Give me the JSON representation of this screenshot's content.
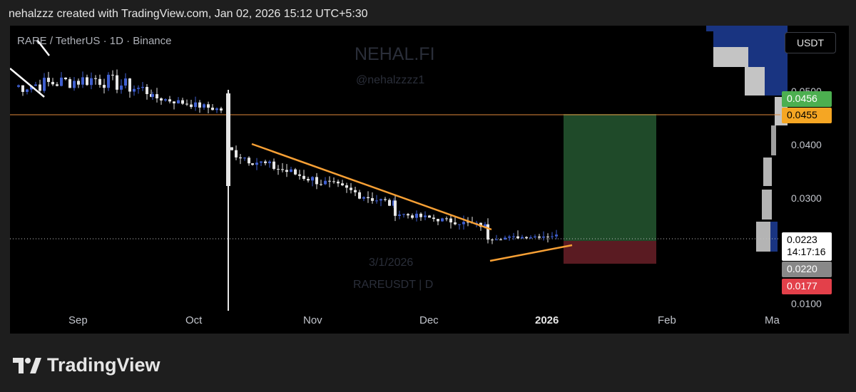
{
  "header": {
    "text": "nehalzzz created with TradingView.com, Jan 02, 2026 15:12 UTC+5:30"
  },
  "chart": {
    "symbol_title": "RARE / TetherUS · 1D · Binance",
    "watermark": {
      "brand": "NEHAL.FI",
      "handle": "@nehalzzzz1",
      "date": "3/1/2026",
      "symbol": "RAREUSDT | D"
    },
    "x_axis": {
      "labels": [
        "Sep",
        "Oct",
        "Nov",
        "Dec",
        "2026",
        "Feb",
        "Ma"
      ]
    },
    "y_axis": {
      "currency": "USDT",
      "labels": [
        "0.0500",
        "0.0400",
        "0.0300",
        "0.0100"
      ]
    },
    "price_tags": {
      "target": "0.0456",
      "resistance": "0.0455",
      "last": "0.0223",
      "countdown": "14:17:16",
      "entry": "0.0220",
      "stop": "0.0177"
    },
    "colors": {
      "bull": "#3f5fd0",
      "bear": "#e6e6e6",
      "trendline": "#f7a035",
      "profit_zone": "#1f4a29",
      "loss_zone": "#5a1b22",
      "volume_profile_up": "#1c3a8f"
    }
  },
  "chart_data": {
    "type": "candlestick",
    "title": "RARE / TetherUS · 1D · Binance",
    "x": [
      "Sep",
      "Oct",
      "Nov",
      "Dec",
      "2026",
      "Feb",
      "Ma"
    ],
    "y_labels": [
      "0.0500",
      "0.0400",
      "0.0300",
      "0.0100"
    ],
    "resistance_level": 0.0455,
    "long_position": {
      "entry": 0.022,
      "target": 0.0456,
      "stop": 0.0177
    },
    "last_price": 0.0223
  },
  "footer": {
    "brand": "TradingView"
  }
}
